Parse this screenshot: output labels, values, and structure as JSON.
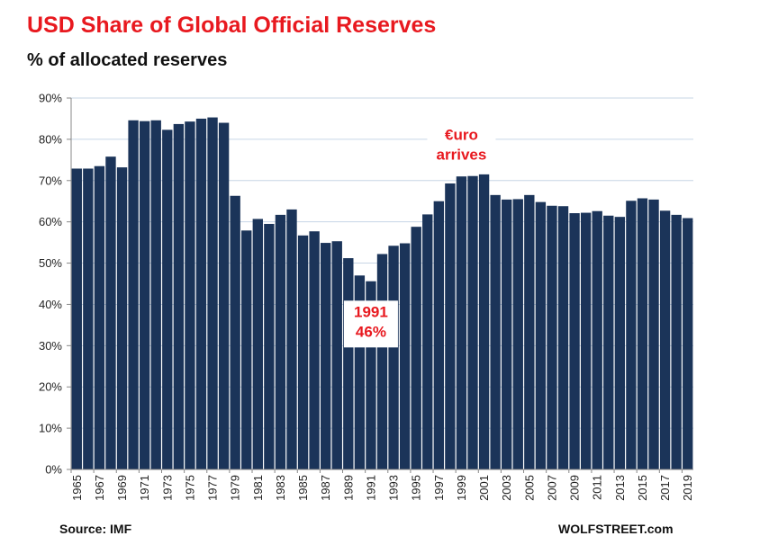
{
  "title": "USD Share of Global  Official Reserves",
  "subtitle": "% of allocated reserves",
  "source": "Source: IMF",
  "brand": "WOLFSTREET.com",
  "colors": {
    "bar": "#1b3459",
    "title": "#e8191f",
    "grid": "#c7d6e6",
    "annotation": "#e8191f"
  },
  "chart_data": {
    "type": "bar",
    "title": "USD Share of Global  Official Reserves",
    "subtitle": "% of allocated reserves",
    "xlabel": "",
    "ylabel": "",
    "ylim": [
      0,
      90
    ],
    "y_ticks": [
      "0%",
      "10%",
      "20%",
      "30%",
      "40%",
      "50%",
      "60%",
      "70%",
      "80%",
      "90%"
    ],
    "grid": true,
    "legend": "none",
    "categories": [
      "1965",
      "1966",
      "1967",
      "1968",
      "1969",
      "1970",
      "1971",
      "1972",
      "1973",
      "1974",
      "1975",
      "1976",
      "1977",
      "1978",
      "1979",
      "1980",
      "1981",
      "1982",
      "1983",
      "1984",
      "1985",
      "1986",
      "1987",
      "1988",
      "1989",
      "1990",
      "1991",
      "1992",
      "1993",
      "1994",
      "1995",
      "1996",
      "1997",
      "1998",
      "1999",
      "2000",
      "2001",
      "2002",
      "2003",
      "2004",
      "2005",
      "2006",
      "2007",
      "2008",
      "2009",
      "2010",
      "2011",
      "2012",
      "2013",
      "2014",
      "2015",
      "2016",
      "2017",
      "2018",
      "2019"
    ],
    "x_tick_labels": [
      "1965",
      "1967",
      "1969",
      "1971",
      "1973",
      "1975",
      "1977",
      "1979",
      "1981",
      "1983",
      "1985",
      "1987",
      "1989",
      "1991",
      "1993",
      "1995",
      "1997",
      "1999",
      "2001",
      "2003",
      "2005",
      "2007",
      "2009",
      "2011",
      "2013",
      "2015",
      "2017",
      "2019"
    ],
    "series": [
      {
        "values": [
          72.9,
          72.9,
          73.5,
          75.8,
          73.2,
          84.6,
          84.4,
          84.6,
          82.3,
          83.7,
          84.3,
          85.0,
          85.3,
          84.0,
          66.3,
          57.9,
          60.7,
          59.5,
          61.7,
          63.0,
          56.7,
          57.7,
          54.9,
          55.3,
          51.2,
          47.0,
          45.6,
          52.2,
          54.2,
          54.8,
          58.8,
          61.8,
          65.0,
          69.3,
          71.0,
          71.1,
          71.5,
          66.5,
          65.4,
          65.5,
          66.5,
          64.8,
          63.9,
          63.8,
          62.1,
          62.2,
          62.6,
          61.5,
          61.2,
          65.1,
          65.7,
          65.4,
          62.7,
          61.7,
          60.9
        ]
      }
    ],
    "annotations": [
      {
        "lines": [
          "1991",
          "46%"
        ],
        "category": "1991"
      },
      {
        "lines": [
          "€uro",
          "arrives"
        ],
        "category": "1999"
      }
    ]
  }
}
